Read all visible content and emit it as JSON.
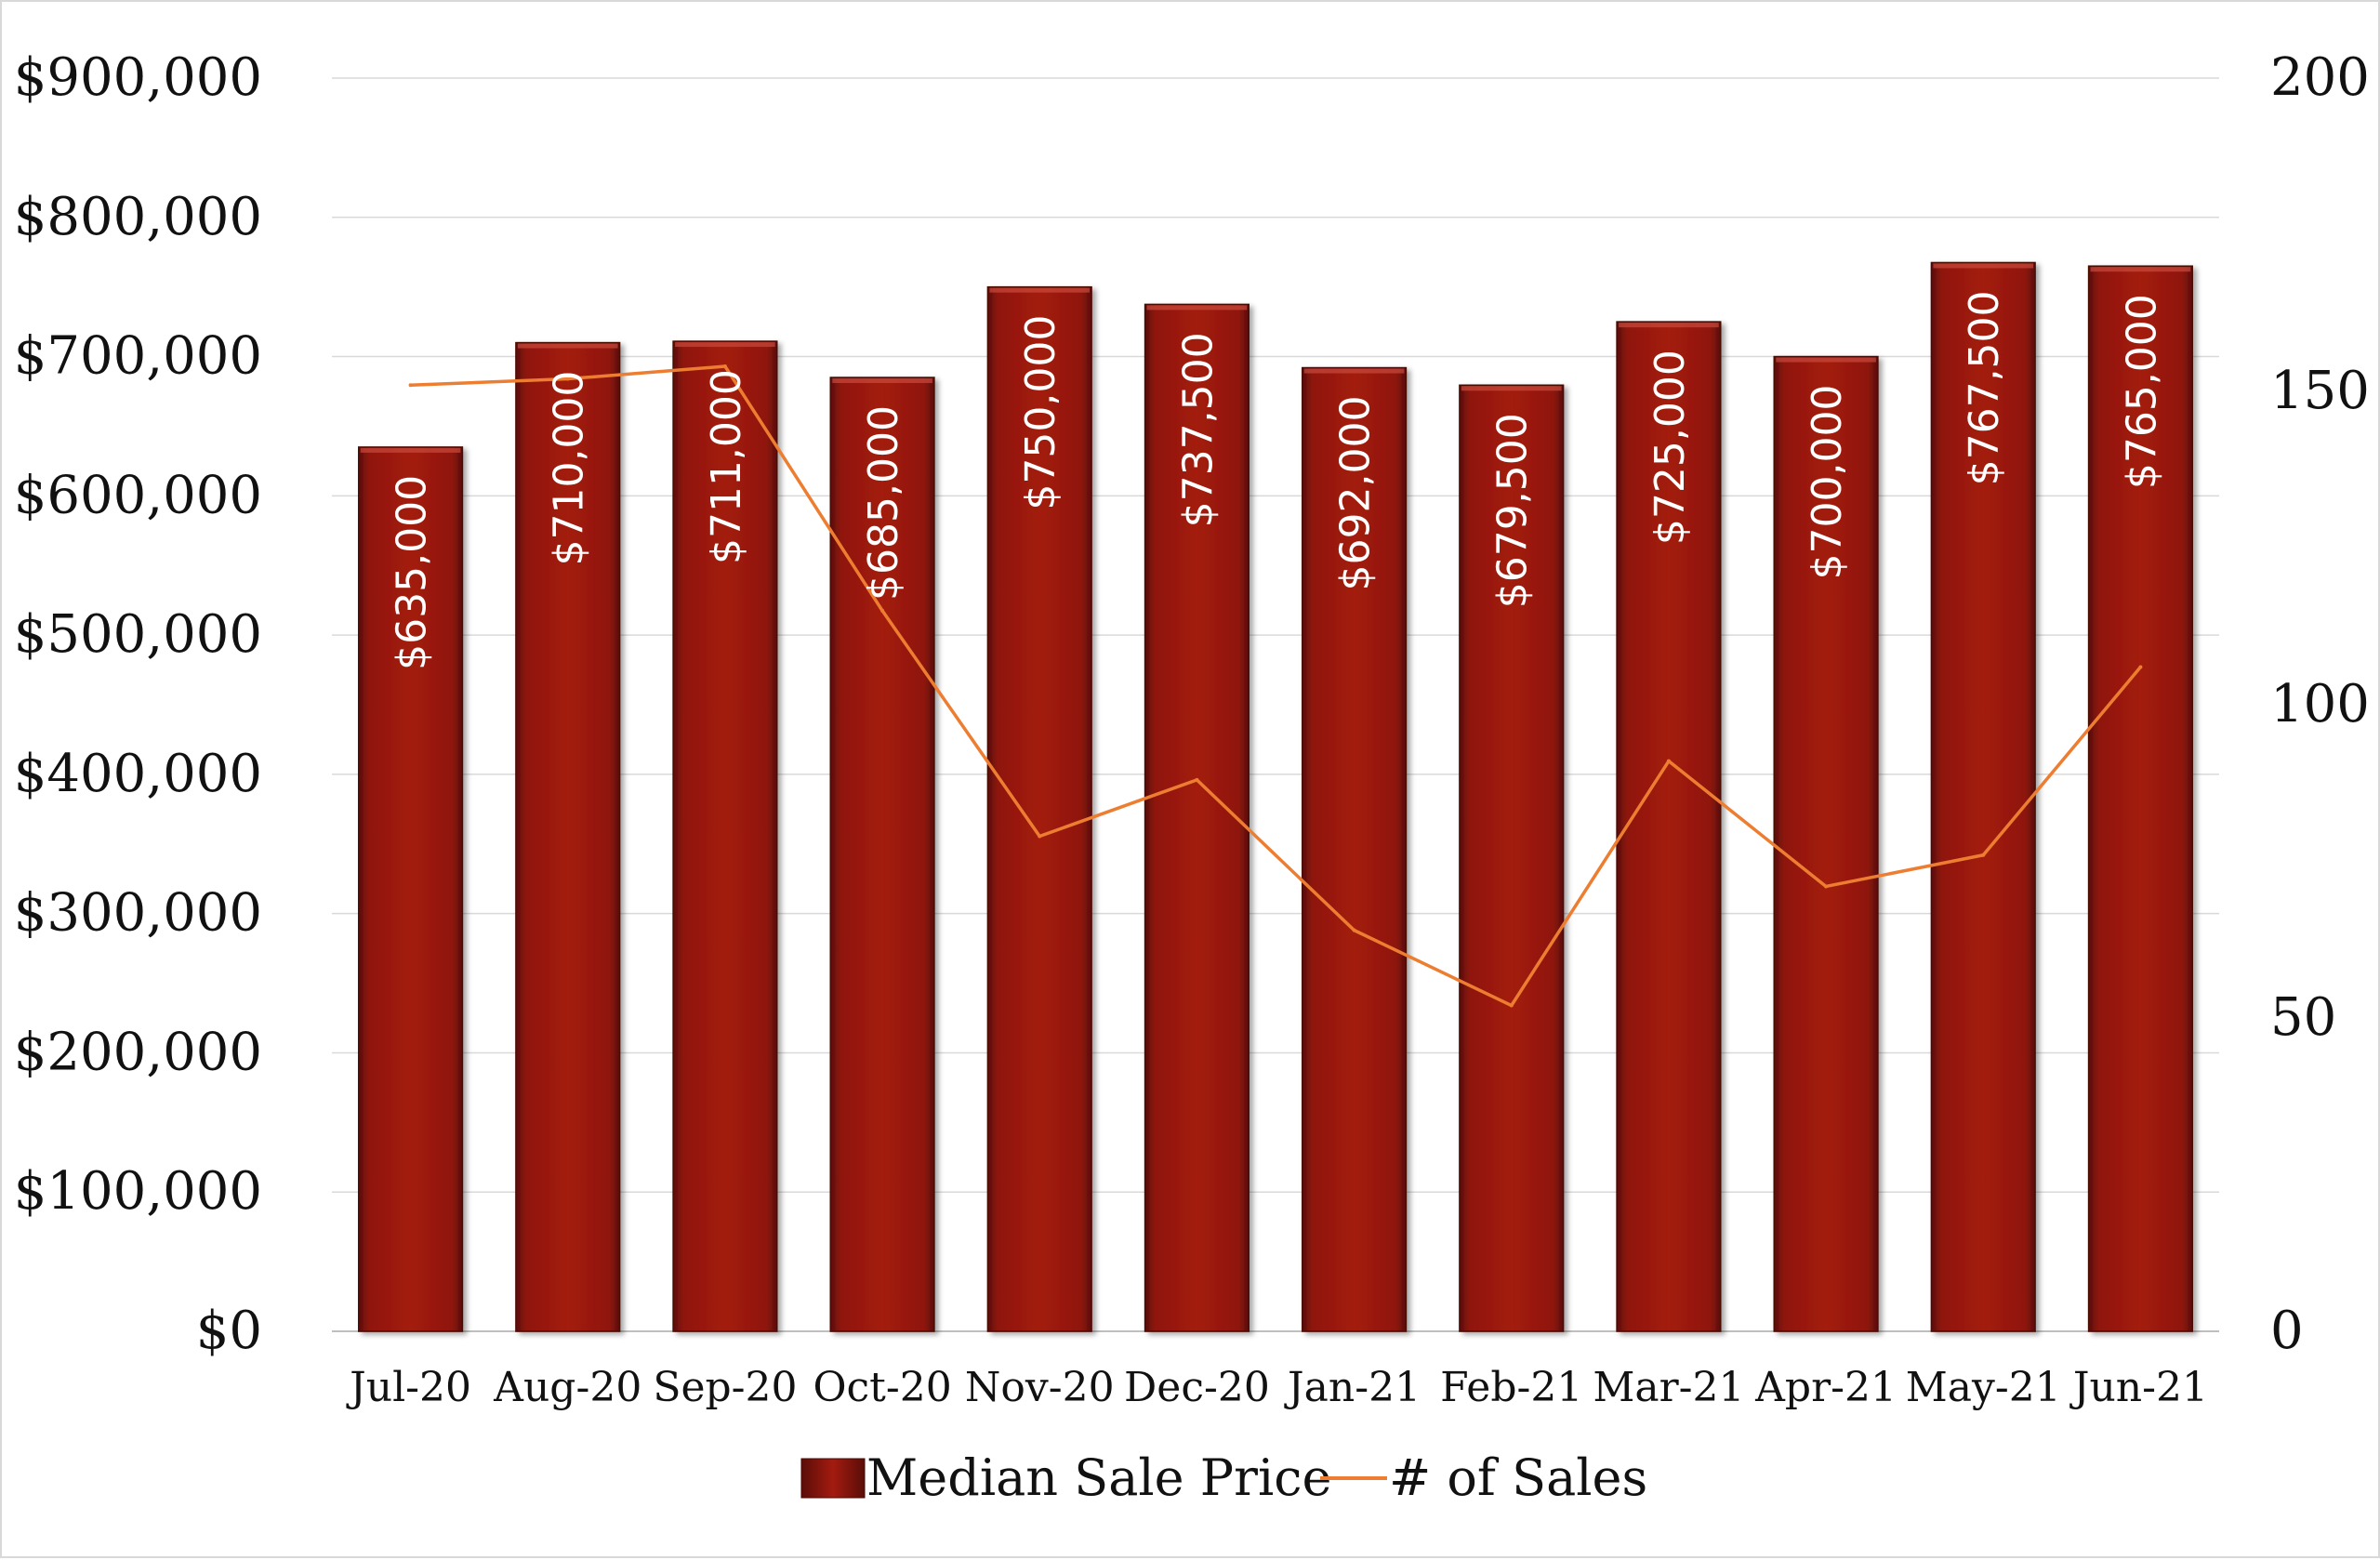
{
  "chart_data": {
    "type": "bar",
    "categories": [
      "Jul-20",
      "Aug-20",
      "Sep-20",
      "Oct-20",
      "Nov-20",
      "Dec-20",
      "Jan-21",
      "Feb-21",
      "Mar-21",
      "Apr-21",
      "May-21",
      "Jun-21"
    ],
    "series": [
      {
        "name": "Median Sale Price",
        "type": "bar",
        "axis": "left",
        "values": [
          635000,
          710000,
          711000,
          685000,
          750000,
          737500,
          692000,
          679500,
          725000,
          700000,
          767500,
          765000
        ],
        "data_labels": [
          "$635,000",
          "$710,000",
          "$711,000",
          "$685,000",
          "$750,000",
          "$737,500",
          "$692,000",
          "$679,500",
          "$725,000",
          "$700,000",
          "$767,500",
          "$765,000"
        ],
        "color": "#9b1a10"
      },
      {
        "name": "# of Sales",
        "type": "line",
        "axis": "right",
        "values": [
          151,
          152,
          154,
          115,
          79,
          88,
          64,
          52,
          91,
          71,
          76,
          106
        ],
        "color": "#ed7d31"
      }
    ],
    "y_left": {
      "ylim": [
        0,
        900000
      ],
      "tick_values": [
        0,
        100000,
        200000,
        300000,
        400000,
        500000,
        600000,
        700000,
        800000,
        900000
      ],
      "tick_labels": [
        "$0",
        "$100,000",
        "$200,000",
        "$300,000",
        "$400,000",
        "$500,000",
        "$600,000",
        "$700,000",
        "$800,000",
        "$900,000"
      ]
    },
    "y_right": {
      "ylim": [
        0,
        200
      ],
      "tick_values": [
        0,
        50,
        100,
        150,
        200
      ],
      "tick_labels": [
        "0",
        "50",
        "100",
        "150",
        "200"
      ]
    },
    "grid": true,
    "legend": {
      "placement": "bottom",
      "entries": [
        "Median Sale Price",
        "# of Sales"
      ]
    }
  }
}
